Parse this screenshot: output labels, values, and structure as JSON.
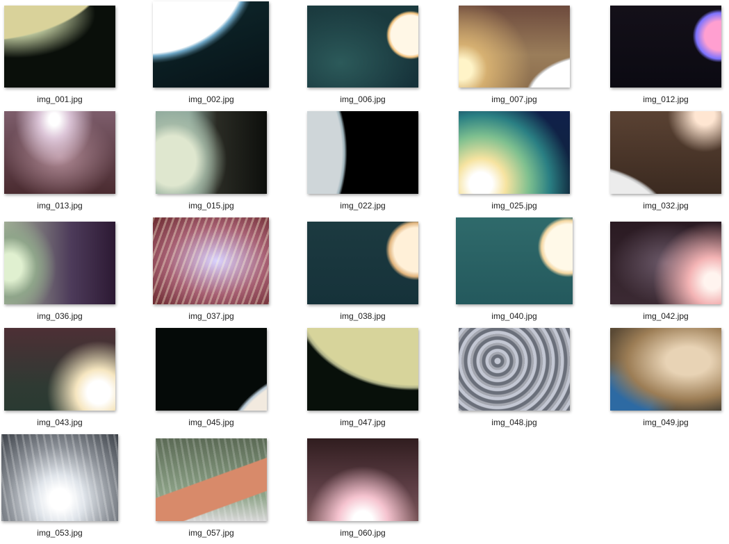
{
  "files": [
    {
      "name": "img_001.jpg",
      "style": "t001"
    },
    {
      "name": "img_002.jpg",
      "style": "t002"
    },
    {
      "name": "img_006.jpg",
      "style": "t006"
    },
    {
      "name": "img_007.jpg",
      "style": "t007"
    },
    {
      "name": "img_012.jpg",
      "style": "t012"
    },
    {
      "name": "img_013.jpg",
      "style": "t013"
    },
    {
      "name": "img_015.jpg",
      "style": "t015"
    },
    {
      "name": "img_022.jpg",
      "style": "t022"
    },
    {
      "name": "img_025.jpg",
      "style": "t025"
    },
    {
      "name": "img_032.jpg",
      "style": "t032"
    },
    {
      "name": "img_036.jpg",
      "style": "t036"
    },
    {
      "name": "img_037.jpg",
      "style": "t037"
    },
    {
      "name": "img_038.jpg",
      "style": "t038"
    },
    {
      "name": "img_040.jpg",
      "style": "t040"
    },
    {
      "name": "img_042.jpg",
      "style": "t042"
    },
    {
      "name": "img_043.jpg",
      "style": "t043"
    },
    {
      "name": "img_045.jpg",
      "style": "t045"
    },
    {
      "name": "img_047.jpg",
      "style": "t047"
    },
    {
      "name": "img_048.jpg",
      "style": "t048"
    },
    {
      "name": "img_049.jpg",
      "style": "t049"
    },
    {
      "name": "img_053.jpg",
      "style": "t053"
    },
    {
      "name": "img_057.jpg",
      "style": "t057"
    },
    {
      "name": "img_060.jpg",
      "style": "t060"
    }
  ]
}
